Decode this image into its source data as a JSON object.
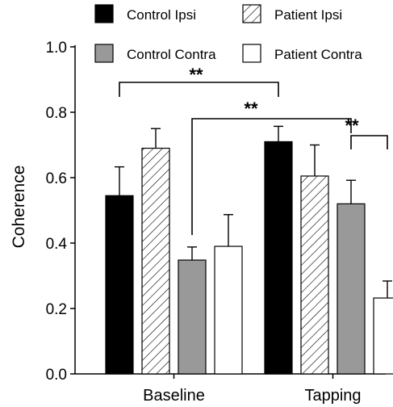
{
  "chart_data": {
    "type": "bar",
    "title": "",
    "xlabel": "",
    "ylabel": "Coherence",
    "ylim": [
      0,
      1.0
    ],
    "yticks": [
      "0.0",
      "0.2",
      "0.4",
      "0.6",
      "0.8",
      "1.0"
    ],
    "categories": [
      "Baseline",
      "Tapping"
    ],
    "grid": false,
    "legend_position": "top",
    "series": [
      {
        "name": "Control Ipsi",
        "style": "solid",
        "color": "#000000",
        "values": [
          0.545,
          0.71
        ],
        "errors": [
          0.088,
          0.047
        ]
      },
      {
        "name": "Patient Ipsi",
        "style": "hatch",
        "color": "#ffffff",
        "values": [
          0.69,
          0.605
        ],
        "errors": [
          0.06,
          0.095
        ]
      },
      {
        "name": "Control Contra",
        "style": "solid",
        "color": "#999999",
        "values": [
          0.348,
          0.52
        ],
        "errors": [
          0.04,
          0.072
        ]
      },
      {
        "name": "Patient Contra",
        "style": "solid",
        "color": "#ffffff",
        "values": [
          0.39,
          0.232
        ],
        "errors": [
          0.097,
          0.052
        ]
      }
    ],
    "annotations": [
      {
        "label": "**",
        "from": "Baseline (Control Ipsi)",
        "to": "Tapping (Control Ipsi)"
      },
      {
        "label": "**",
        "from": "Baseline (Control Contra)",
        "to": "Tapping (Control Contra)"
      },
      {
        "label": "**",
        "from": "Tapping (Control Contra)",
        "to": "Tapping (Patient Contra)"
      }
    ]
  }
}
